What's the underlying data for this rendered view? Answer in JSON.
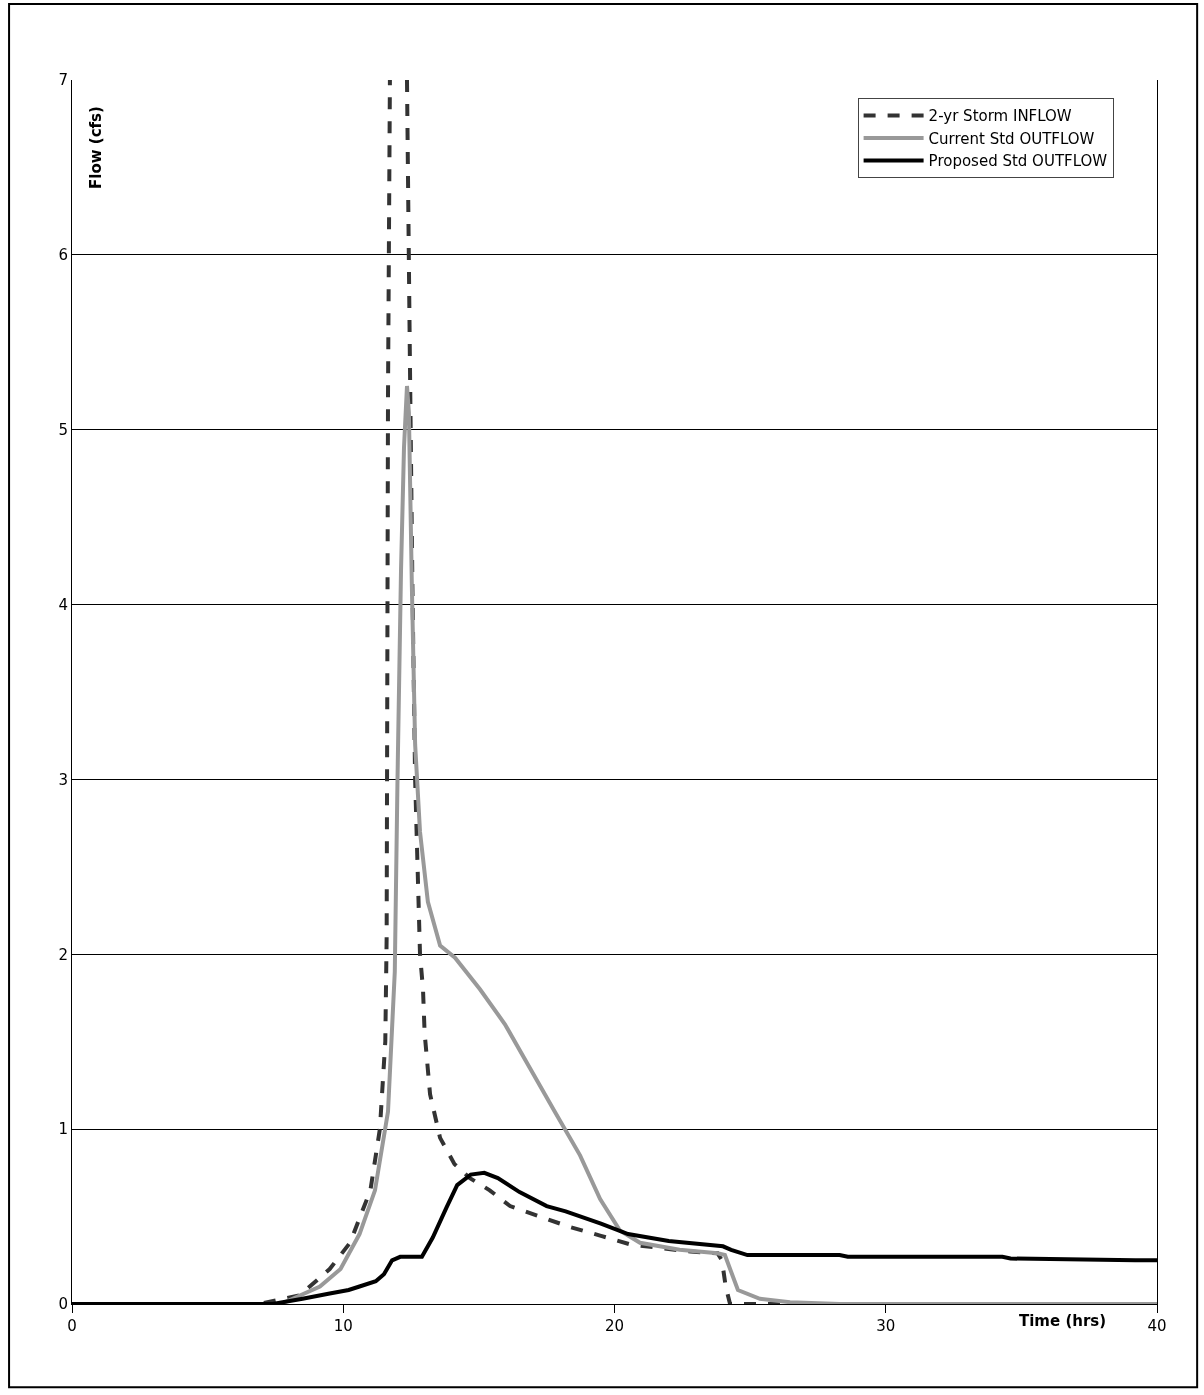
{
  "chart_data": {
    "type": "line",
    "xlabel": "Time (hrs)",
    "ylabel": "Flow (cfs)",
    "xlim": [
      0,
      40
    ],
    "xticks": [
      0,
      10,
      20,
      30,
      40
    ],
    "ylim": [
      0,
      7
    ],
    "yticks": [
      0,
      1,
      2,
      3,
      4,
      5,
      6,
      7
    ],
    "grid": "y",
    "legend": "top right",
    "series": [
      {
        "name": "2-yr Storm INFLOW",
        "color": "#333333",
        "line_style": "dashed",
        "x": [
          0,
          6.9,
          8.4,
          9.5,
          10.25,
          11,
          11.35,
          11.55,
          11.6,
          11.65,
          11.72,
          12,
          12.35,
          12.45,
          12.55,
          12.65,
          12.83,
          12.94,
          13,
          13.2,
          13.57,
          14.1,
          14.67,
          15.4,
          16.15,
          17.25,
          18.36,
          19.5,
          20.6,
          21.7,
          22.8,
          23.8,
          23.96,
          24.1,
          24.26,
          40
        ],
        "values": [
          0,
          0,
          0.05,
          0.2,
          0.35,
          0.65,
          1.0,
          1.5,
          2.1,
          5.2,
          7,
          null,
          7,
          5.5,
          4.1,
          3.0,
          2.0,
          1.8,
          1.55,
          1.2,
          0.95,
          0.8,
          0.72,
          0.65,
          0.56,
          0.5,
          0.44,
          0.39,
          0.34,
          0.32,
          0.3,
          0.29,
          0.25,
          0.1,
          0,
          0
        ]
      },
      {
        "name": "Current Std OUTFLOW",
        "color": "#999999",
        "line_style": "solid",
        "x": [
          0,
          7.7,
          9.14,
          9.9,
          10.6,
          11.17,
          11.65,
          11.9,
          12.0,
          12.13,
          12.24,
          12.35,
          12.42,
          12.53,
          12.65,
          12.83,
          13.12,
          13.57,
          14.12,
          15.04,
          15.96,
          16.88,
          17.8,
          18.73,
          19.47,
          20.2,
          20.94,
          22.4,
          23.8,
          24.07,
          24.55,
          25.36,
          26.47,
          28.3,
          40
        ],
        "values": [
          0,
          0,
          0.1,
          0.2,
          0.4,
          0.65,
          1.1,
          1.9,
          3.0,
          4.2,
          4.9,
          5.25,
          5.1,
          4.1,
          3.2,
          2.7,
          2.3,
          2.05,
          1.98,
          1.8,
          1.6,
          1.35,
          1.1,
          0.85,
          0.6,
          0.42,
          0.35,
          0.31,
          0.29,
          0.28,
          0.08,
          0.03,
          0.01,
          0,
          0
        ]
      },
      {
        "name": "Proposed Std OUTFLOW",
        "color": "#000000",
        "line_style": "solid",
        "x": [
          0,
          7.4,
          8.5,
          9.5,
          10.2,
          10.6,
          11.2,
          11.5,
          11.8,
          12.1,
          12.9,
          13.3,
          13.8,
          14.2,
          14.7,
          15.2,
          15.7,
          16.5,
          17.5,
          18.2,
          19.5,
          20.5,
          22,
          24,
          24.3,
          24.9,
          28.3,
          28.6,
          34.3,
          34.6,
          39.2,
          40
        ],
        "values": [
          0,
          0,
          0.03,
          0.06,
          0.08,
          0.1,
          0.13,
          0.17,
          0.25,
          0.27,
          0.27,
          0.38,
          0.55,
          0.68,
          0.74,
          0.75,
          0.72,
          0.64,
          0.56,
          0.53,
          0.46,
          0.4,
          0.36,
          0.33,
          0.31,
          0.28,
          0.28,
          0.27,
          0.27,
          0.26,
          0.25,
          0.25
        ]
      }
    ]
  }
}
